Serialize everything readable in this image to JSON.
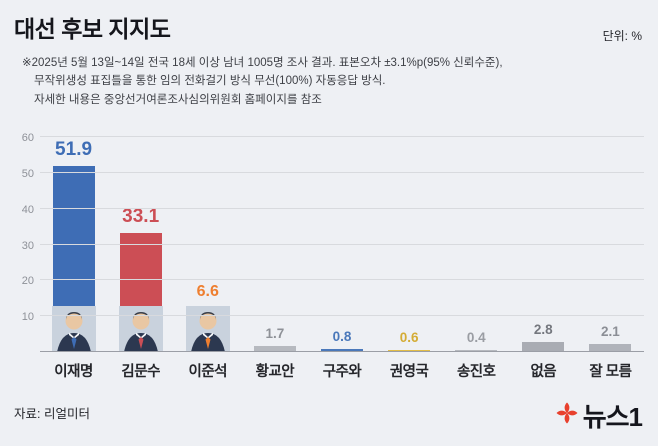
{
  "header": {
    "title": "대선 후보 지지도",
    "unit_label": "단위: %",
    "note_lines": [
      "※2025년 5월 13일~14일 전국 18세 이상 남녀 1005명 조사 결과. 표본오차 ±3.1%p(95% 신뢰수준),",
      "무작위생성 표집틀을 통한 임의 전화걸기 방식 무선(100%) 자동응답 방식.",
      "자세한 내용은 중앙선거여론조사심의위원회 홈페이지를 참조"
    ]
  },
  "chart_data": {
    "type": "bar",
    "title": "대선 후보 지지도",
    "unit": "%",
    "categories": [
      "이재명",
      "김문수",
      "이준석",
      "황교안",
      "구주와",
      "권영국",
      "송진호",
      "없음",
      "잘 모름"
    ],
    "values": [
      51.9,
      33.1,
      6.6,
      1.7,
      0.8,
      0.6,
      0.4,
      2.8,
      2.1
    ],
    "bar_colors": [
      "#3e6db5",
      "#cc4e55",
      "#ee7f30",
      "#b6b9bf",
      "#4a78ba",
      "#e2bd47",
      "#b6b9bf",
      "#a9acb3",
      "#b0b3ba"
    ],
    "value_colors": [
      "#3e6db5",
      "#cc4e55",
      "#ee7f30",
      "#8e9197",
      "#4a78ba",
      "#d4ac35",
      "#9a9da3",
      "#74777e",
      "#8b8e95"
    ],
    "has_photo": [
      true,
      true,
      true,
      false,
      false,
      false,
      false,
      false,
      false
    ],
    "ylim": [
      0,
      60
    ],
    "yticks": [
      10,
      20,
      30,
      40,
      50,
      60
    ],
    "grid": true,
    "legend": false
  },
  "footer": {
    "source": "자료: 리얼미터",
    "logo_text": "뉴스1",
    "logo_color": "#e8402d"
  }
}
